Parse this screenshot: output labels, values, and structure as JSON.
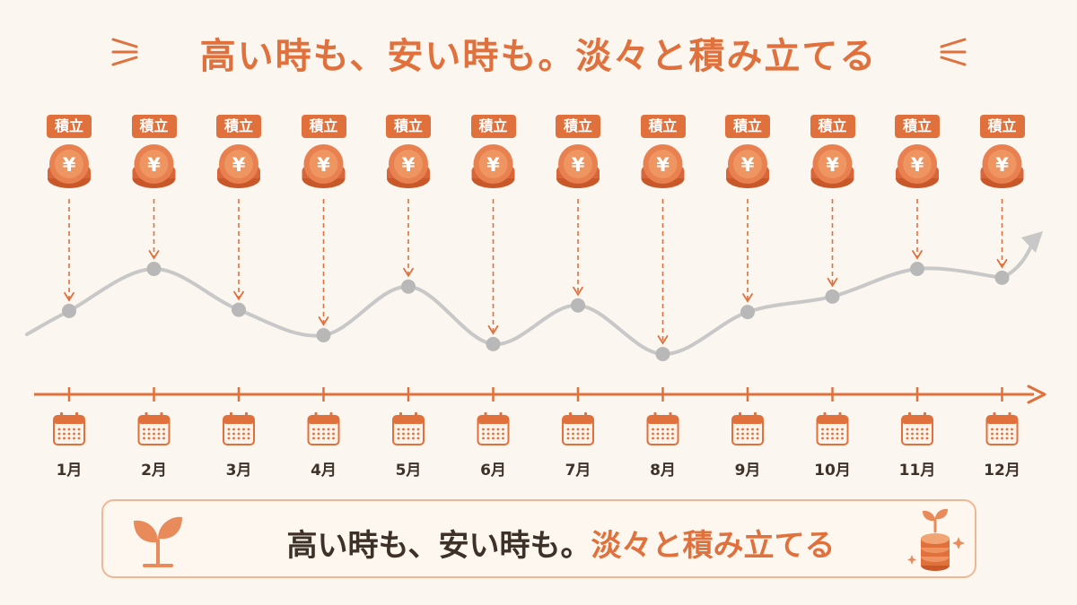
{
  "title": "高い時も、安い時も。淡々と積み立てる",
  "banner": {
    "text_plain": "高い時も、安い時も。",
    "text_accent": "淡々と積み立てる"
  },
  "badge_label": "積立",
  "coin_symbol": "¥",
  "months": [
    "1月",
    "2月",
    "3月",
    "4月",
    "5月",
    "6月",
    "7月",
    "8月",
    "9月",
    "10月",
    "11月",
    "12月"
  ],
  "price_levels": [
    0.52,
    0.9,
    0.53,
    0.3,
    0.74,
    0.22,
    0.57,
    0.13,
    0.51,
    0.65,
    0.9,
    0.82
  ],
  "icons": {
    "coin": "yen-coin-stack-icon",
    "calendar": "calendar-icon",
    "sprout": "sprout-icon",
    "savings": "savings-coins-sprout-icon"
  },
  "colors": {
    "accent": "#e0703c",
    "accent_light": "#f0b795",
    "line": "#c8c8c8",
    "point": "#b8b8b8",
    "text_dark": "#3d3128",
    "background": "#fbf6ef"
  }
}
